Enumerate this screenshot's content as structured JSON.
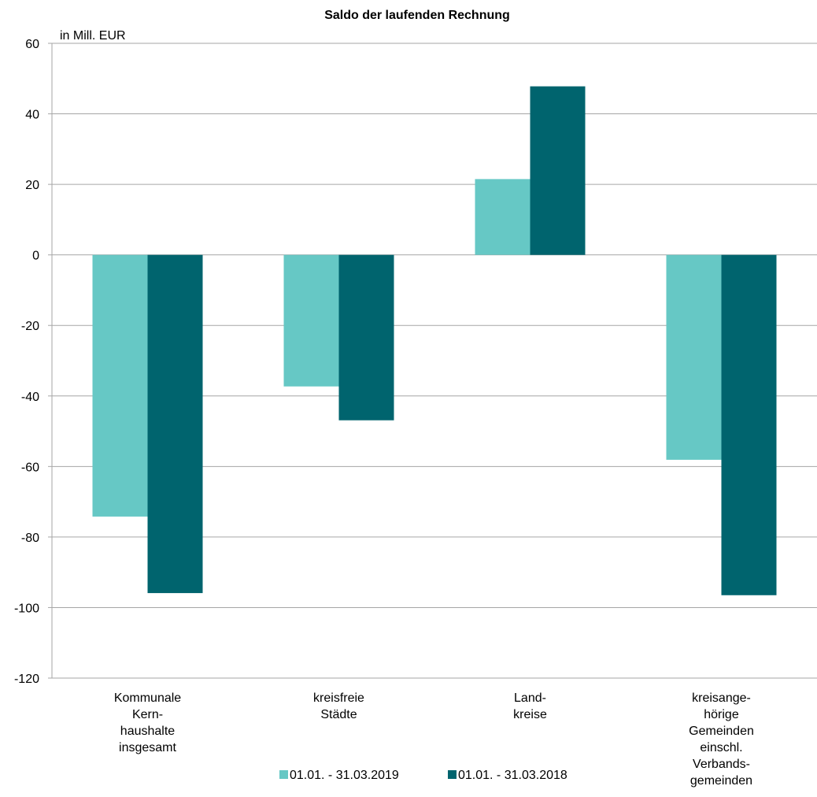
{
  "chart_data": {
    "type": "bar",
    "title": "Saldo der laufenden Rechnung",
    "unit_label": "in Mill. EUR",
    "ylim": [
      -120,
      60
    ],
    "yticks": [
      60,
      40,
      20,
      0,
      -20,
      -40,
      -60,
      -80,
      -100,
      -120
    ],
    "grid": true,
    "legend_position": "bottom",
    "categories": [
      [
        "Kommunale",
        "Kern-",
        "haushalte",
        "insgesamt"
      ],
      [
        "kreisfreie",
        "Städte"
      ],
      [
        "Land-",
        "kreise"
      ],
      [
        "kreisange-",
        "hörige",
        "Gemeinden",
        "einschl.",
        "Verbands-",
        "gemeinden"
      ]
    ],
    "series": [
      {
        "name": "01.01. - 31.03.2019",
        "color": "#66c8c5",
        "values": [
          -74.2,
          -37.3,
          21.5,
          -58.1
        ]
      },
      {
        "name": "01.01. - 31.03.2018",
        "color": "#00646e",
        "values": [
          -95.9,
          -46.9,
          47.8,
          -96.5
        ]
      }
    ]
  }
}
